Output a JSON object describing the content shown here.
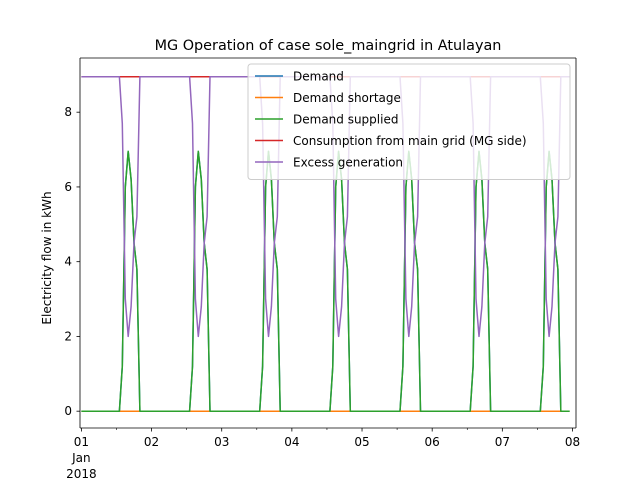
{
  "chart_data": {
    "type": "line",
    "title": "MG Operation of case sole_maingrid in Atulayan",
    "xlabel": "",
    "ylabel": "Electricity flow in kWh",
    "x_units": "days since 2018-01-01 00:00",
    "xlim": [
      -0.02,
      7.05
    ],
    "ylim": [
      -0.45,
      9.45
    ],
    "x_ticks": [
      {
        "value": 0,
        "label": "01",
        "sublabels": [
          "Jan",
          "2018"
        ]
      },
      {
        "value": 1,
        "label": "02"
      },
      {
        "value": 2,
        "label": "03"
      },
      {
        "value": 3,
        "label": "04"
      },
      {
        "value": 4,
        "label": "05"
      },
      {
        "value": 5,
        "label": "06"
      },
      {
        "value": 6,
        "label": "07"
      },
      {
        "value": 7,
        "label": "08"
      }
    ],
    "y_ticks": [
      0,
      2,
      4,
      6,
      8
    ],
    "legend_position": "top-right",
    "daily_pattern": {
      "hours": [
        0,
        13,
        14,
        15,
        16,
        17,
        18,
        19,
        20,
        21,
        22,
        23
      ],
      "demand_supplied_kwh": [
        0,
        0,
        1.2,
        6.0,
        6.95,
        6.2,
        4.5,
        3.8,
        0,
        0,
        0,
        0
      ],
      "excess_generation_kwh": [
        8.95,
        8.95,
        7.7,
        3.0,
        2.0,
        2.8,
        4.5,
        5.2,
        8.95,
        8.95,
        8.95,
        8.95
      ]
    },
    "days": 7,
    "series": [
      {
        "name": "Demand",
        "color": "#1f77b4",
        "pattern": "daily_pattern.demand_supplied_kwh"
      },
      {
        "name": "Demand shortage",
        "color": "#ff7f0e",
        "constant": 0
      },
      {
        "name": "Demand supplied",
        "color": "#2ca02c",
        "pattern": "daily_pattern.demand_supplied_kwh"
      },
      {
        "name": "Consumption from main grid (MG side)",
        "color": "#d62728",
        "constant": 8.95
      },
      {
        "name": "Excess generation",
        "color": "#9467bd",
        "pattern": "daily_pattern.excess_generation_kwh"
      }
    ]
  }
}
